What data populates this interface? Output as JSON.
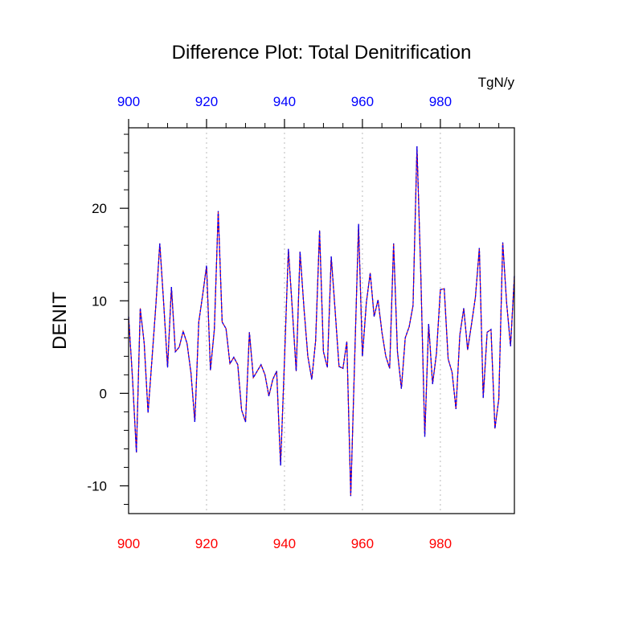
{
  "chart_data": {
    "type": "line",
    "title": "Difference Plot: Total Denitrification",
    "units": "TgN/y",
    "ylabel": "DENIT",
    "xlabel": "",
    "xlim": [
      900,
      999
    ],
    "ylim": [
      -13,
      28.7
    ],
    "x_ticks": [
      900,
      920,
      940,
      960,
      980
    ],
    "x_tick_labels": [
      "900",
      "920",
      "940",
      "960",
      "980"
    ],
    "y_ticks": [
      -10,
      0,
      10,
      20
    ],
    "y_tick_labels": [
      "-10",
      "0",
      "10",
      "20"
    ],
    "top_axis_color": "#0000ff",
    "bottom_axis_color": "#ff0000",
    "grid": "vertical dotted at major x ticks",
    "x_start": 900,
    "values": [
      8.3,
      1.7,
      -6.4,
      9.2,
      5.4,
      -2.1,
      3.7,
      9.5,
      16.2,
      9.8,
      2.8,
      11.5,
      4.5,
      5.0,
      6.7,
      5.4,
      2.2,
      -3.1,
      7.7,
      10.6,
      13.8,
      2.5,
      6.9,
      19.7,
      7.7,
      7.0,
      3.2,
      3.9,
      3.1,
      -1.8,
      -3.1,
      6.6,
      1.7,
      2.4,
      3.1,
      2.0,
      -0.3,
      1.5,
      2.4,
      -7.8,
      3.5,
      15.6,
      9.2,
      2.4,
      15.3,
      9.2,
      4.0,
      1.5,
      5.7,
      17.6,
      4.5,
      2.8,
      14.8,
      8.9,
      2.9,
      2.7,
      5.6,
      -11.1,
      3.5,
      18.3,
      4.0,
      9.8,
      13.0,
      8.3,
      10.1,
      6.6,
      4.0,
      2.7,
      16.2,
      4.5,
      0.5,
      6.0,
      7.2,
      9.5,
      26.7,
      12.7,
      -4.7,
      7.5,
      1.0,
      4.3,
      11.2,
      11.3,
      3.7,
      2.3,
      -1.7,
      6.3,
      9.2,
      4.7,
      7.5,
      10.4,
      15.7,
      -0.5,
      6.6,
      6.9,
      -3.8,
      -0.6,
      16.3,
      9.8,
      5.1,
      12.7
    ],
    "series": [
      {
        "color": "#000000",
        "style": "solid"
      },
      {
        "color": "#ff0000",
        "style": "solid"
      },
      {
        "color": "#0000ff",
        "style": "dashed"
      }
    ]
  }
}
